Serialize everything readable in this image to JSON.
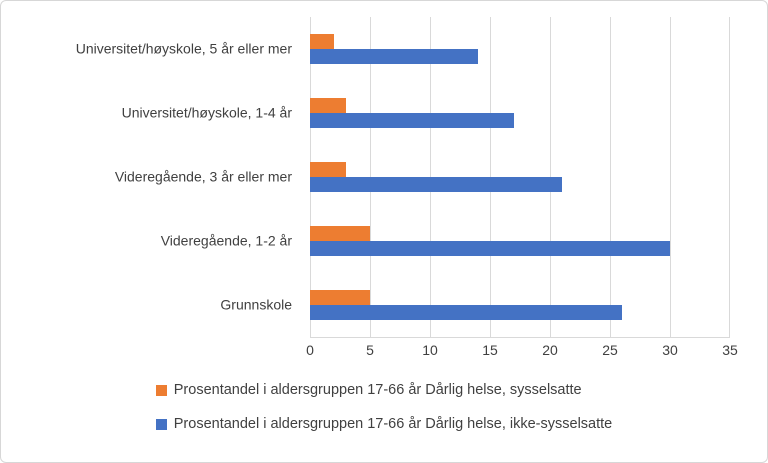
{
  "chart_data": {
    "type": "bar",
    "orientation": "horizontal",
    "title": "",
    "xlabel": "",
    "ylabel": "",
    "xlim": [
      0,
      35
    ],
    "x_ticks": [
      0,
      5,
      10,
      15,
      20,
      25,
      30,
      35
    ],
    "grid": true,
    "legend_position": "bottom",
    "categories": [
      "Universitet/høyskole, 5 år eller mer",
      "Universitet/høyskole, 1-4 år",
      "Videregående, 3 år eller mer",
      "Videregående, 1-2 år",
      "Grunnskole"
    ],
    "series": [
      {
        "name": "Prosentandel i aldersgruppen 17-66 år Dårlig helse, sysselsatte",
        "color": "#ED7D31",
        "values": [
          2,
          3,
          3,
          5,
          5
        ]
      },
      {
        "name": "Prosentandel i aldersgruppen 17-66 år Dårlig helse, ikke-sysselsatte",
        "color": "#4472C4",
        "values": [
          14,
          17,
          21,
          30,
          26
        ]
      }
    ]
  }
}
